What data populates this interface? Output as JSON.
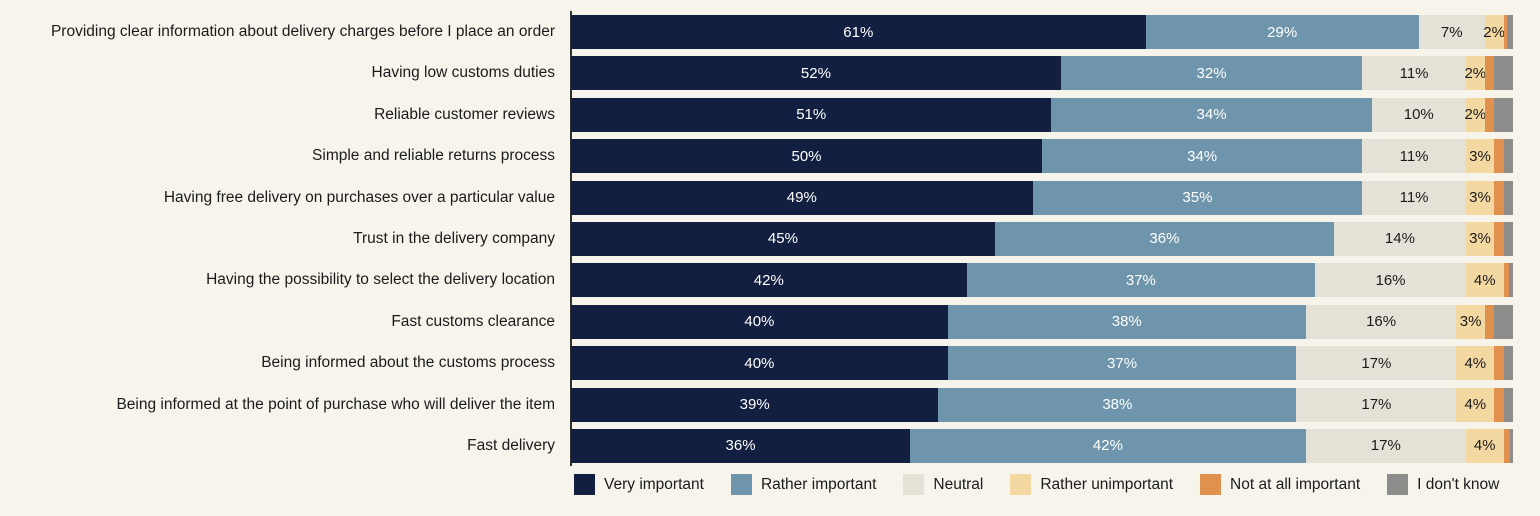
{
  "colors": {
    "background": "#f7f4ec",
    "axis_line": "#2f2f2f",
    "text": "#1b1b1b"
  },
  "chart_data": {
    "type": "bar",
    "orientation": "horizontal-stacked",
    "unit": "%",
    "xlim": [
      0,
      100
    ],
    "grid": false,
    "legend_position": "bottom",
    "categories": [
      "Providing clear information about delivery charges before I place an order",
      "Having low customs duties",
      "Reliable customer reviews",
      "Simple and reliable returns process",
      "Having free delivery on purchases over a particular value",
      "Trust in the delivery company",
      "Having the possibility to select the delivery location",
      "Fast customs clearance",
      "Being informed about the customs process",
      "Being informed at the point of purchase who will deliver the item",
      "Fast delivery"
    ],
    "series": [
      {
        "key": "very-important",
        "name": "Very important",
        "color": "#131f40",
        "label_color": "#ffffff",
        "show_value_labels": true,
        "values": [
          61,
          52,
          51,
          50,
          49,
          45,
          42,
          40,
          40,
          39,
          36
        ]
      },
      {
        "key": "rather-important",
        "name": "Rather important",
        "color": "#6e95ac",
        "label_color": "#ffffff",
        "show_value_labels": true,
        "values": [
          29,
          32,
          34,
          34,
          35,
          36,
          37,
          38,
          37,
          38,
          42
        ]
      },
      {
        "key": "neutral",
        "name": "Neutral",
        "color": "#e4e2d7",
        "label_color": "#1b1b1b",
        "show_value_labels": true,
        "values": [
          7,
          11,
          10,
          11,
          11,
          14,
          16,
          16,
          17,
          17,
          17
        ]
      },
      {
        "key": "rather-unimportant",
        "name": "Rather unimportant",
        "color": "#f4d8a2",
        "label_color": "#1b1b1b",
        "show_value_labels": true,
        "values": [
          2,
          2,
          2,
          3,
          3,
          3,
          4,
          3,
          4,
          4,
          4
        ]
      },
      {
        "key": "not-at-all-important",
        "name": "Not at all important",
        "color": "#e0914d",
        "label_color": "#1b1b1b",
        "show_value_labels": false,
        "values": [
          0.4,
          1,
          1,
          1,
          1,
          1,
          0.6,
          1,
          1,
          1,
          0.7
        ]
      },
      {
        "key": "dont-know",
        "name": "I don't know",
        "color": "#8d8d8b",
        "label_color": "#1b1b1b",
        "show_value_labels": false,
        "values": [
          0.6,
          2,
          2,
          1,
          1,
          1,
          0.4,
          2,
          1,
          1,
          0.3
        ]
      }
    ]
  }
}
